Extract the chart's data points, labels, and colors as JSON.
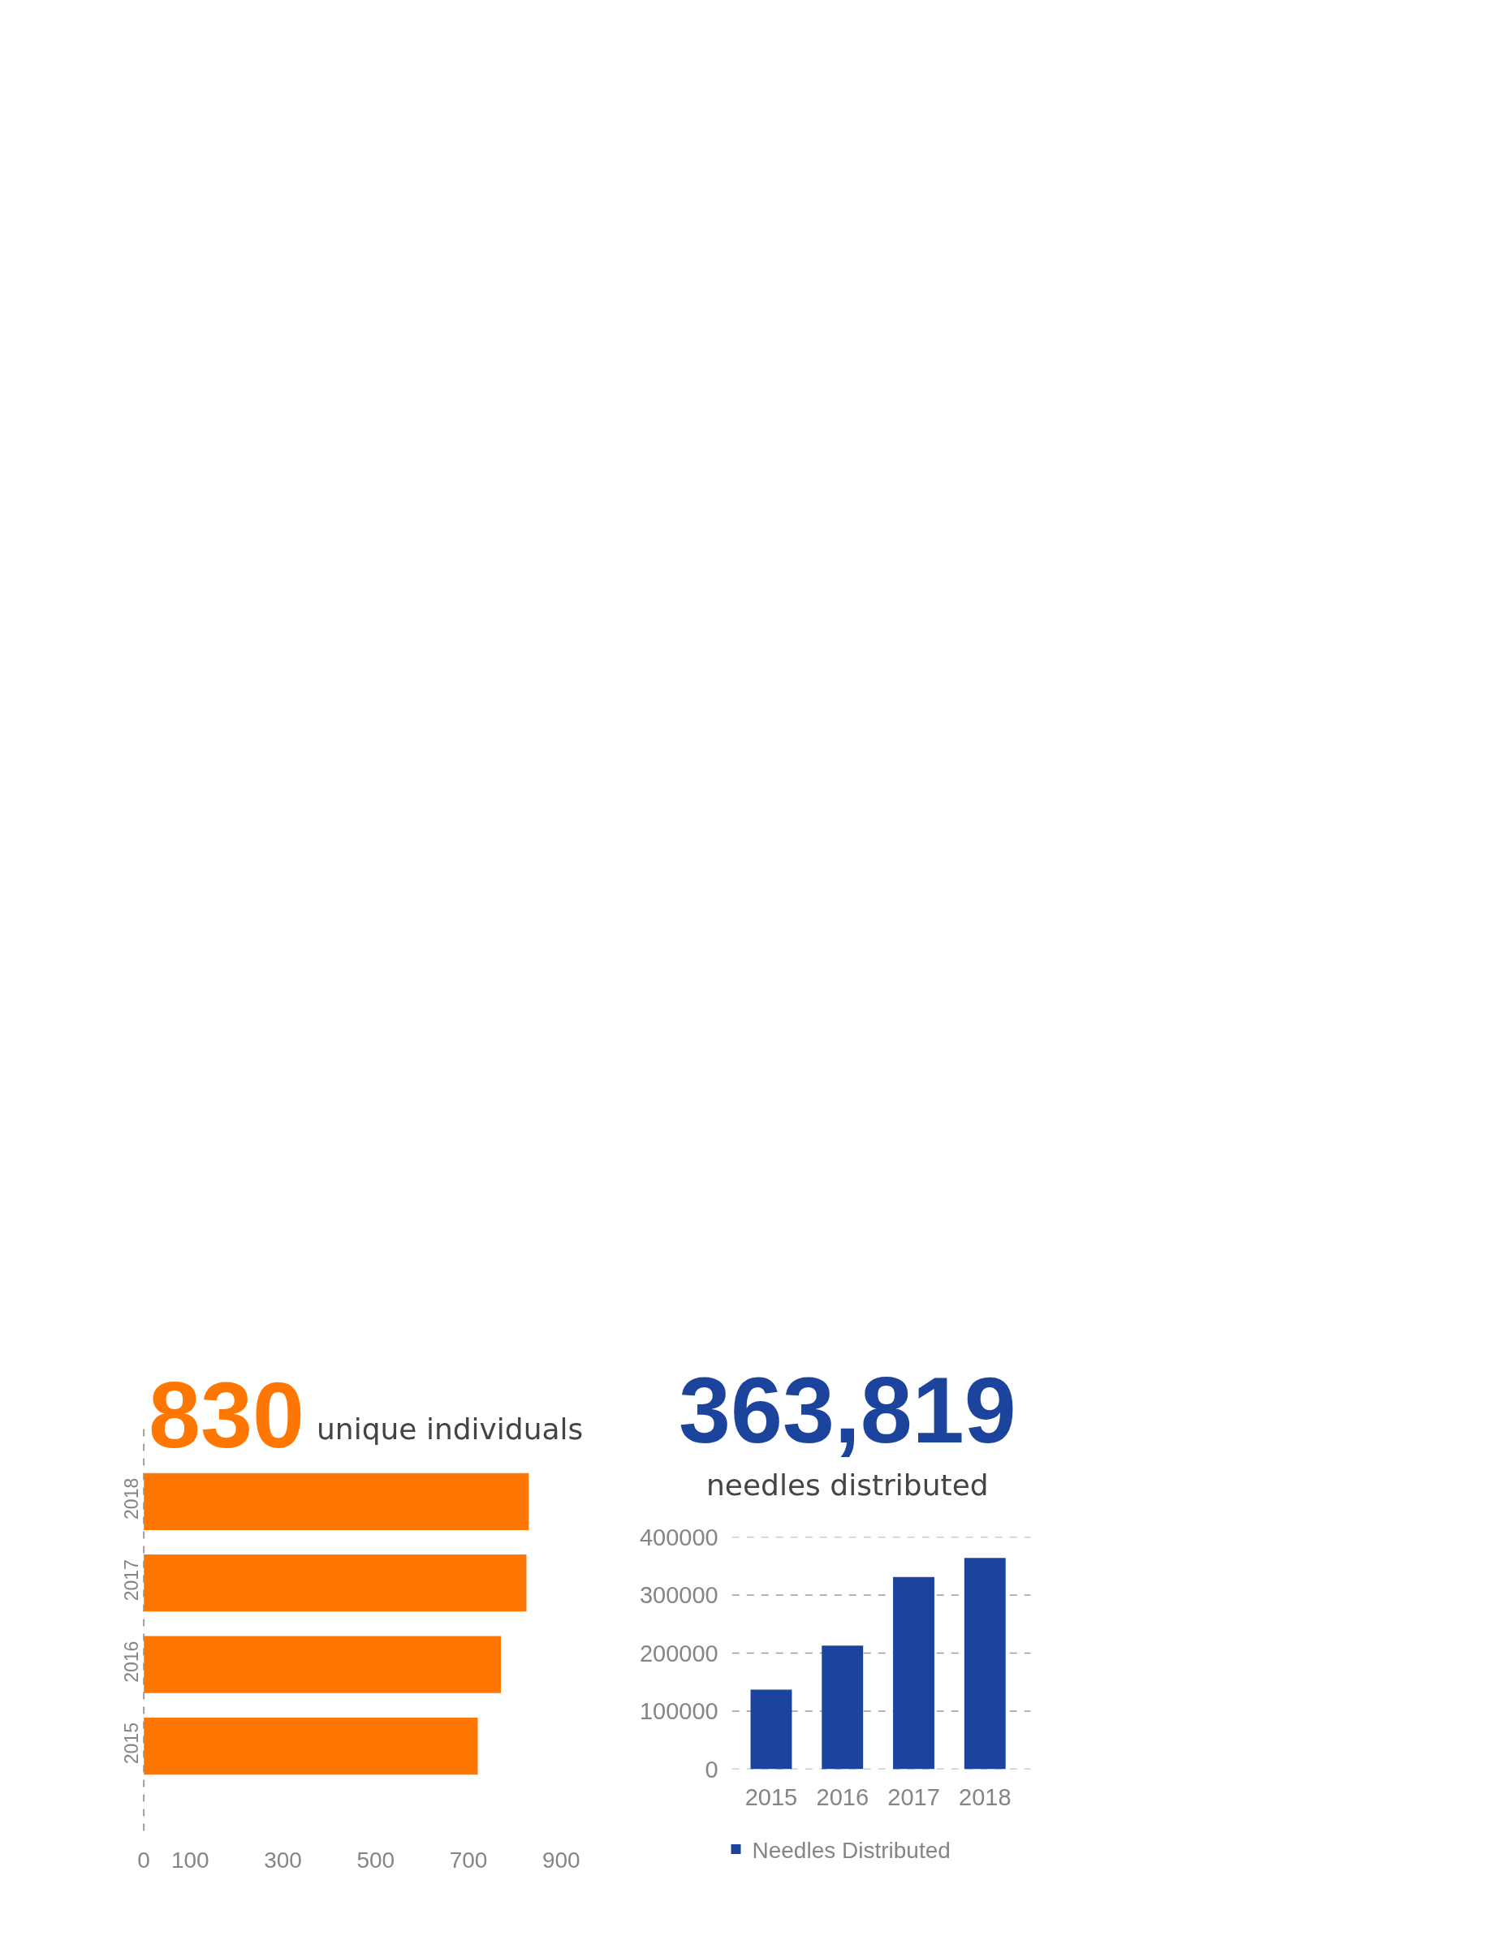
{
  "chart_data": [
    {
      "type": "bar",
      "title": "830",
      "subtitle": "unique individuals",
      "orientation": "horizontal",
      "categories": [
        "2018",
        "2017",
        "2016",
        "2015"
      ],
      "values": [
        830,
        825,
        770,
        720
      ],
      "color": "#ff7700",
      "xlim": [
        0,
        900
      ],
      "xticks": [
        0,
        100,
        300,
        500,
        700,
        900
      ]
    },
    {
      "type": "bar",
      "title": "363,819",
      "subtitle": "needles distributed",
      "categories": [
        "2015",
        "2016",
        "2017",
        "2018"
      ],
      "series": [
        {
          "name": "Needles Distributed",
          "color": "#1c449c",
          "values": [
            137000,
            213000,
            331000,
            364000
          ]
        }
      ],
      "ylim": [
        0,
        400000
      ],
      "yticks": [
        0,
        100000,
        200000,
        300000,
        400000
      ],
      "grid": "y",
      "legend": "bottom"
    }
  ]
}
